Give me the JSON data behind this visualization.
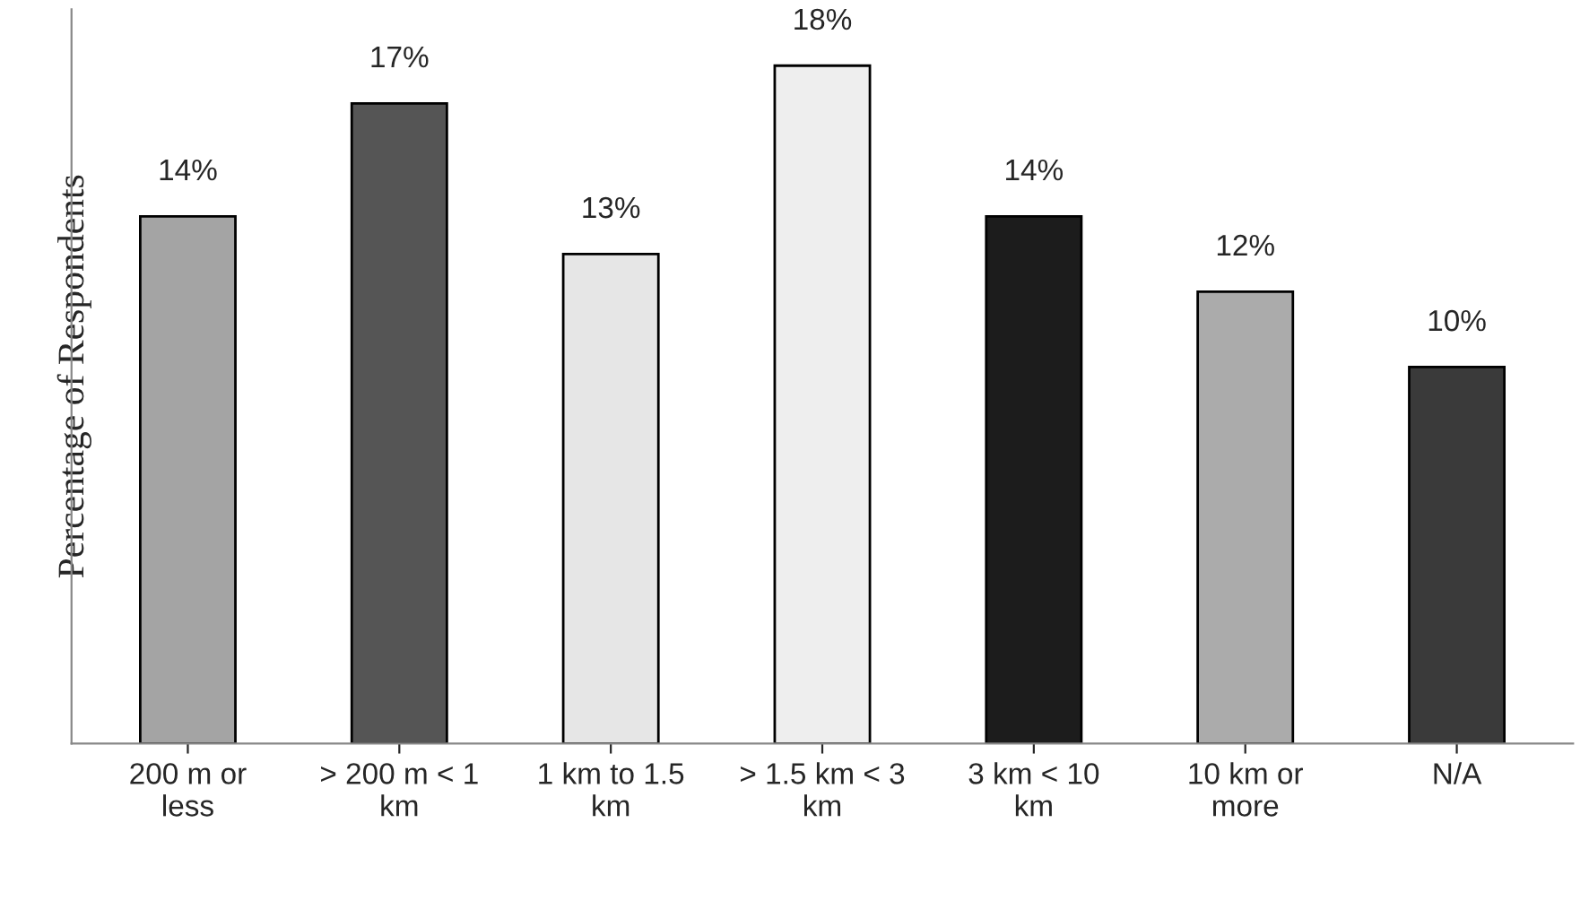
{
  "chart_data": {
    "type": "bar",
    "ylabel": "Percentage of Respondents",
    "categories": [
      "200 m or\nless",
      "> 200 m < 1\nkm",
      "1 km to 1.5\nkm",
      "> 1.5 km < 3\nkm",
      "3 km < 10\nkm",
      "10 km or\nmore",
      "N/A"
    ],
    "values": [
      14,
      17,
      13,
      18,
      14,
      12,
      10
    ],
    "colors": [
      "#a4a4a4",
      "#555555",
      "#e6e6e6",
      "#eeeeee",
      "#1c1c1c",
      "#ababab",
      "#3a3a3a"
    ],
    "value_labels": [
      "14%",
      "17%",
      "13%",
      "18%",
      "14%",
      "12%",
      "10%"
    ],
    "ylim": [
      0,
      19.5
    ],
    "tick_labels": "x",
    "grid": false,
    "legend": false
  }
}
